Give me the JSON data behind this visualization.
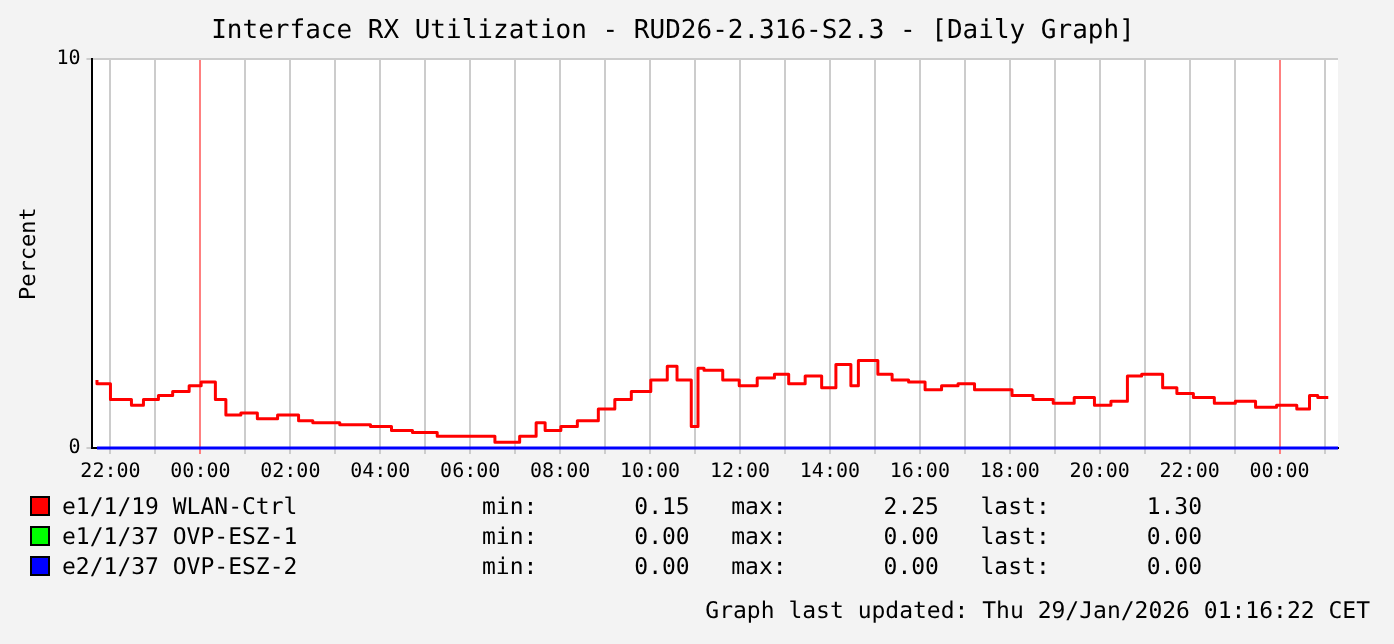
{
  "chart_data": {
    "type": "step",
    "title": "Interface RX Utilization - RUD26-2.316-S2.3 - [Daily Graph]",
    "ylabel": "Percent",
    "xlim": [
      "2026-01-27T21:36",
      "2026-01-29T01:18"
    ],
    "ylim": [
      0,
      10
    ],
    "yticks": [
      0,
      10
    ],
    "xticks": [
      {
        "value": "2026-01-27T22:00",
        "label": "22:00"
      },
      {
        "value": "2026-01-27T23:00",
        "label": null
      },
      {
        "value": "2026-01-28T00:00",
        "label": "00:00"
      },
      {
        "value": "2026-01-28T01:00",
        "label": null
      },
      {
        "value": "2026-01-28T02:00",
        "label": "02:00"
      },
      {
        "value": "2026-01-28T03:00",
        "label": null
      },
      {
        "value": "2026-01-28T04:00",
        "label": "04:00"
      },
      {
        "value": "2026-01-28T05:00",
        "label": null
      },
      {
        "value": "2026-01-28T06:00",
        "label": "06:00"
      },
      {
        "value": "2026-01-28T07:00",
        "label": null
      },
      {
        "value": "2026-01-28T08:00",
        "label": "08:00"
      },
      {
        "value": "2026-01-28T09:00",
        "label": null
      },
      {
        "value": "2026-01-28T10:00",
        "label": "10:00"
      },
      {
        "value": "2026-01-28T11:00",
        "label": null
      },
      {
        "value": "2026-01-28T12:00",
        "label": "12:00"
      },
      {
        "value": "2026-01-28T13:00",
        "label": null
      },
      {
        "value": "2026-01-28T14:00",
        "label": "14:00"
      },
      {
        "value": "2026-01-28T15:00",
        "label": null
      },
      {
        "value": "2026-01-28T16:00",
        "label": "16:00"
      },
      {
        "value": "2026-01-28T17:00",
        "label": null
      },
      {
        "value": "2026-01-28T18:00",
        "label": "18:00"
      },
      {
        "value": "2026-01-28T19:00",
        "label": null
      },
      {
        "value": "2026-01-28T20:00",
        "label": "20:00"
      },
      {
        "value": "2026-01-28T21:00",
        "label": null
      },
      {
        "value": "2026-01-28T22:00",
        "label": "22:00"
      },
      {
        "value": "2026-01-28T23:00",
        "label": null
      },
      {
        "value": "2026-01-29T00:00",
        "label": "00:00"
      },
      {
        "value": "2026-01-29T01:00",
        "label": null
      }
    ],
    "grid": true,
    "legend": "bottom",
    "marker": "none",
    "series": [
      {
        "name": "e1/1/19 WLAN-Ctrl",
        "color": "#ff0000",
        "x": [
          "2026-01-27T21:42",
          "2026-01-27T22:00",
          "2026-01-27T22:28",
          "2026-01-27T22:44",
          "2026-01-27T23:04",
          "2026-01-27T23:23",
          "2026-01-27T23:45",
          "2026-01-28T00:01",
          "2026-01-28T00:20",
          "2026-01-28T00:34",
          "2026-01-28T00:54",
          "2026-01-28T01:16",
          "2026-01-28T01:43",
          "2026-01-28T02:11",
          "2026-01-28T02:30",
          "2026-01-28T03:06",
          "2026-01-28T03:47",
          "2026-01-28T04:15",
          "2026-01-28T04:43",
          "2026-01-28T05:16",
          "2026-01-28T05:52",
          "2026-01-28T06:33",
          "2026-01-28T07:06",
          "2026-01-28T07:28",
          "2026-01-28T07:40",
          "2026-01-28T08:01",
          "2026-01-28T08:23",
          "2026-01-28T08:51",
          "2026-01-28T09:13",
          "2026-01-28T09:35",
          "2026-01-28T10:01",
          "2026-01-28T10:23",
          "2026-01-28T10:36",
          "2026-01-28T10:55",
          "2026-01-28T11:04",
          "2026-01-28T11:12",
          "2026-01-28T11:37",
          "2026-01-28T11:59",
          "2026-01-28T12:23",
          "2026-01-28T12:46",
          "2026-01-28T13:05",
          "2026-01-28T13:27",
          "2026-01-28T13:49",
          "2026-01-28T14:08",
          "2026-01-28T14:28",
          "2026-01-28T14:38",
          "2026-01-28T15:04",
          "2026-01-28T15:23",
          "2026-01-28T15:45",
          "2026-01-28T16:07",
          "2026-01-28T16:29",
          "2026-01-28T16:51",
          "2026-01-28T17:13",
          "2026-01-28T17:35",
          "2026-01-28T18:03",
          "2026-01-28T18:31",
          "2026-01-28T18:58",
          "2026-01-28T19:26",
          "2026-01-28T19:53",
          "2026-01-28T20:15",
          "2026-01-28T20:37",
          "2026-01-28T20:56",
          "2026-01-28T21:24",
          "2026-01-28T21:43",
          "2026-01-28T22:05",
          "2026-01-28T22:33",
          "2026-01-28T23:01",
          "2026-01-28T23:28",
          "2026-01-28T23:56",
          "2026-01-29T00:23",
          "2026-01-29T00:40",
          "2026-01-29T00:51",
          "2026-01-29T01:05"
        ],
        "values": [
          1.75,
          1.65,
          1.25,
          1.1,
          1.25,
          1.35,
          1.45,
          1.6,
          1.7,
          1.25,
          0.85,
          0.9,
          0.75,
          0.85,
          0.7,
          0.65,
          0.6,
          0.55,
          0.45,
          0.4,
          0.3,
          0.3,
          0.15,
          0.3,
          0.65,
          0.45,
          0.55,
          0.7,
          1.0,
          1.25,
          1.45,
          1.75,
          2.1,
          1.75,
          0.55,
          2.05,
          2.0,
          1.75,
          1.6,
          1.8,
          1.9,
          1.65,
          1.85,
          1.55,
          2.15,
          1.6,
          2.25,
          1.9,
          1.75,
          1.7,
          1.5,
          1.6,
          1.65,
          1.5,
          1.5,
          1.35,
          1.25,
          1.15,
          1.3,
          1.1,
          1.2,
          1.85,
          1.9,
          1.55,
          1.4,
          1.3,
          1.15,
          1.2,
          1.05,
          1.1,
          1.0,
          1.35,
          1.3
        ]
      },
      {
        "name": "e1/1/37 OVP-ESZ-1",
        "color": "#00ff00"
      },
      {
        "name": "e2/1/37 OVP-ESZ-2",
        "color": "#0000ff",
        "x": [
          "2026-01-27T21:42",
          "2026-01-29T01:18"
        ],
        "values": [
          0,
          0
        ]
      }
    ],
    "annotations": [
      "min:       0.15   max:       2.25   last:       1.30",
      "min:       0.00   max:       0.00   last:       0.00",
      "min:       0.00   max:       0.00   last:       0.00",
      "Graph last updated: Thu 29/Jan/2026 01:16:22 CET"
    ]
  }
}
